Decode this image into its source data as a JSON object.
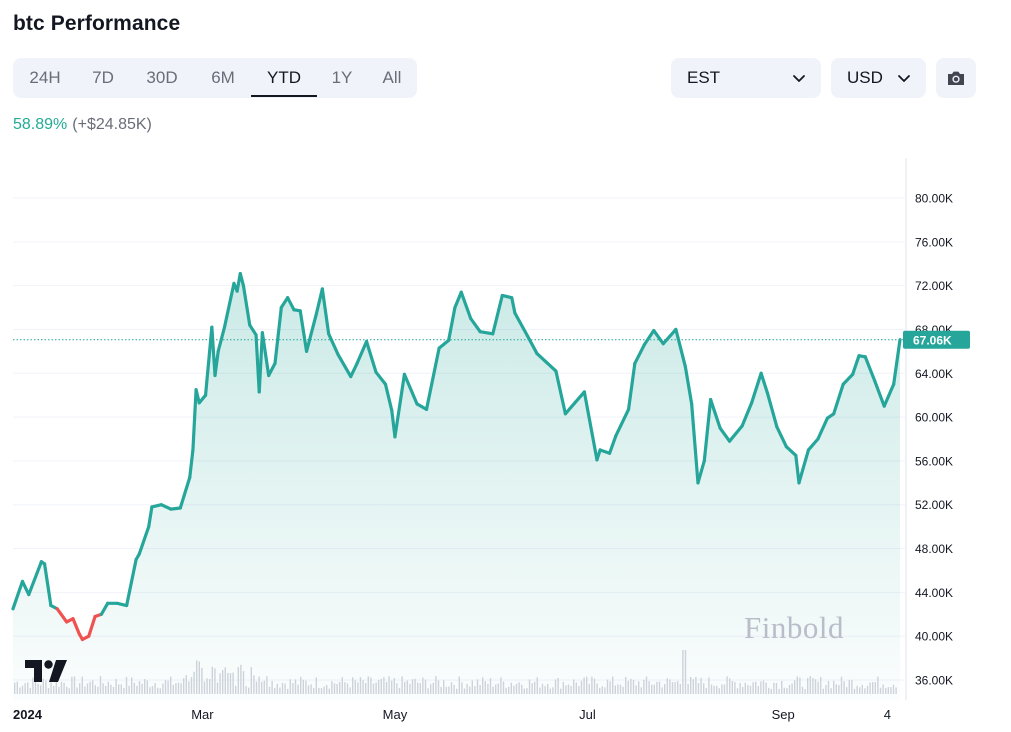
{
  "title": "btc Performance",
  "tabs": [
    {
      "label": "24H",
      "active": false
    },
    {
      "label": "7D",
      "active": false
    },
    {
      "label": "30D",
      "active": false
    },
    {
      "label": "6M",
      "active": false
    },
    {
      "label": "YTD",
      "active": true
    },
    {
      "label": "1Y",
      "active": false
    },
    {
      "label": "All",
      "active": false
    }
  ],
  "timezone": {
    "value": "EST"
  },
  "currency": {
    "value": "USD"
  },
  "screenshot_icon": "camera-icon",
  "performance": {
    "percent": "58.89%",
    "absolute": "(+$24.85K)"
  },
  "watermark": "Finbold",
  "colors": {
    "line": "#26a69a",
    "down": "#ef5350",
    "price_label": "#26a69a",
    "positive": "#22ab94"
  },
  "chart_data": {
    "type": "area",
    "title": "",
    "xlabel": "",
    "ylabel": "",
    "ylim": [
      35000,
      82000
    ],
    "yticks": [
      36000,
      40000,
      44000,
      48000,
      52000,
      56000,
      60000,
      64000,
      68000,
      72000,
      76000,
      80000
    ],
    "ytick_labels": [
      "36.00K",
      "40.00K",
      "44.00K",
      "48.00K",
      "52.00K",
      "56.00K",
      "60.00K",
      "64.00K",
      "68.00K",
      "72.00K",
      "76.00K",
      "80.00K"
    ],
    "xticks": [
      {
        "label": "2024",
        "date": "2024-01-01",
        "bold": true
      },
      {
        "label": "Mar",
        "date": "2024-03-01",
        "bold": false
      },
      {
        "label": "May",
        "date": "2024-05-01",
        "bold": false
      },
      {
        "label": "Jul",
        "date": "2024-07-01",
        "bold": false
      },
      {
        "label": "Sep",
        "date": "2024-09-01",
        "bold": false
      },
      {
        "label": "4",
        "date": "2024-10-04",
        "bold": false
      }
    ],
    "last_price": 67060,
    "last_price_label": "67.06K",
    "series": [
      {
        "x": [
          "2024-01-01",
          "2024-01-04",
          "2024-01-06",
          "2024-01-10",
          "2024-01-11",
          "2024-01-13",
          "2024-01-15",
          "2024-01-18",
          "2024-01-20",
          "2024-01-22",
          "2024-01-23",
          "2024-01-25",
          "2024-01-27",
          "2024-01-29",
          "2024-01-31",
          "2024-02-03",
          "2024-02-06",
          "2024-02-09",
          "2024-02-10",
          "2024-02-13",
          "2024-02-14",
          "2024-02-17",
          "2024-02-20",
          "2024-02-23",
          "2024-02-26",
          "2024-02-27",
          "2024-02-28",
          "2024-02-29",
          "2024-03-02",
          "2024-03-04",
          "2024-03-05",
          "2024-03-06",
          "2024-03-08",
          "2024-03-11",
          "2024-03-12",
          "2024-03-13",
          "2024-03-14",
          "2024-03-16",
          "2024-03-18",
          "2024-03-19",
          "2024-03-20",
          "2024-03-22",
          "2024-03-24",
          "2024-03-26",
          "2024-03-28",
          "2024-03-30",
          "2024-04-01",
          "2024-04-03",
          "2024-04-06",
          "2024-04-08",
          "2024-04-10",
          "2024-04-13",
          "2024-04-17",
          "2024-04-19",
          "2024-04-22",
          "2024-04-25",
          "2024-04-28",
          "2024-04-30",
          "2024-05-01",
          "2024-05-04",
          "2024-05-08",
          "2024-05-11",
          "2024-05-15",
          "2024-05-18",
          "2024-05-20",
          "2024-05-22",
          "2024-05-25",
          "2024-05-28",
          "2024-06-01",
          "2024-06-04",
          "2024-06-07",
          "2024-06-08",
          "2024-06-12",
          "2024-06-15",
          "2024-06-18",
          "2024-06-21",
          "2024-06-24",
          "2024-06-27",
          "2024-06-30",
          "2024-07-04",
          "2024-07-05",
          "2024-07-08",
          "2024-07-10",
          "2024-07-14",
          "2024-07-16",
          "2024-07-19",
          "2024-07-22",
          "2024-07-25",
          "2024-07-29",
          "2024-08-01",
          "2024-08-03",
          "2024-08-05",
          "2024-08-07",
          "2024-08-09",
          "2024-08-12",
          "2024-08-15",
          "2024-08-19",
          "2024-08-22",
          "2024-08-25",
          "2024-08-27",
          "2024-08-30",
          "2024-09-02",
          "2024-09-05",
          "2024-09-06",
          "2024-09-09",
          "2024-09-12",
          "2024-09-15",
          "2024-09-17",
          "2024-09-20",
          "2024-09-23",
          "2024-09-25",
          "2024-09-27",
          "2024-09-30",
          "2024-10-03",
          "2024-10-06",
          "2024-10-08"
        ],
        "y": [
          42500,
          45000,
          43800,
          46800,
          46600,
          42800,
          42500,
          41300,
          41600,
          40200,
          39700,
          40000,
          41800,
          42000,
          43000,
          43000,
          42800,
          47000,
          47500,
          50000,
          51800,
          52000,
          51600,
          51700,
          54500,
          57000,
          62500,
          61300,
          62000,
          68200,
          63800,
          66000,
          68200,
          72200,
          71500,
          73100,
          72000,
          68400,
          67500,
          62300,
          67700,
          63800,
          64900,
          70000,
          70900,
          69800,
          69700,
          66000,
          69300,
          71700,
          67600,
          65700,
          63700,
          64900,
          66900,
          64100,
          63000,
          60600,
          58200,
          63900,
          61200,
          60700,
          66300,
          67000,
          70000,
          71400,
          69000,
          67800,
          67600,
          71100,
          70900,
          69500,
          67400,
          65800,
          65000,
          64200,
          60300,
          61300,
          62300,
          56100,
          57000,
          56700,
          58300,
          60700,
          64900,
          66600,
          67900,
          66700,
          68000,
          64600,
          61200,
          54000,
          56000,
          61600,
          59000,
          57800,
          59200,
          61300,
          64000,
          62200,
          59100,
          57300,
          56500,
          54000,
          57000,
          58000,
          59900,
          60300,
          63000,
          63900,
          65600,
          65500,
          63300,
          61000,
          63000,
          67060
        ]
      }
    ]
  }
}
